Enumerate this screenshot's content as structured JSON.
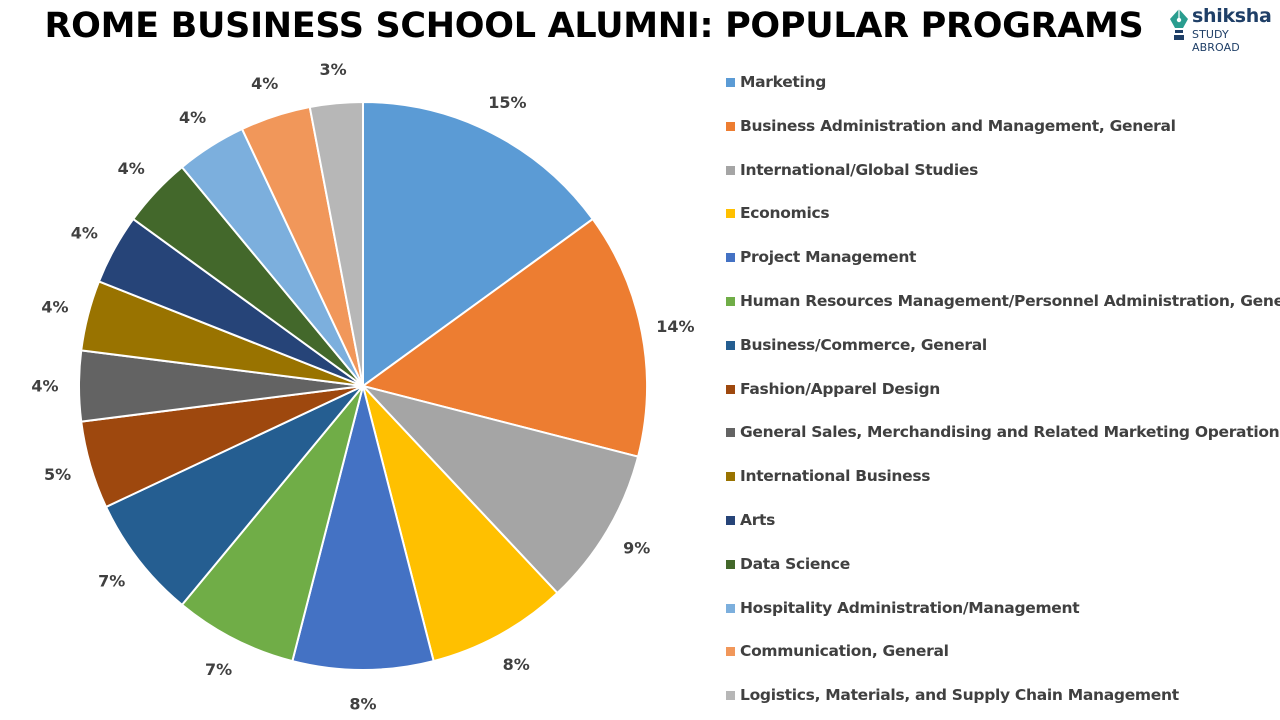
{
  "title": "ROME BUSINESS SCHOOL ALUMNI: POPULAR PROGRAMS",
  "logo": {
    "name": "shiksha",
    "tagline": "STUDY ABROAD",
    "icon": "pen-nib-icon",
    "color": "#1f3f67",
    "accent": "#2a9d8f"
  },
  "chart_data": {
    "type": "pie",
    "title": "ROME BUSINESS SCHOOL ALUMNI: POPULAR PROGRAMS",
    "start_angle": "12 o'clock",
    "direction": "clockwise",
    "legend_position": "right",
    "slices": [
      {
        "label": "Marketing",
        "value": 15,
        "display": "15%",
        "color": "#5b9bd5"
      },
      {
        "label": "Business Administration and Management, General",
        "value": 14,
        "display": "14%",
        "color": "#ed7d31"
      },
      {
        "label": "International/Global Studies",
        "value": 9,
        "display": "9%",
        "color": "#a5a5a5"
      },
      {
        "label": "Economics",
        "value": 8,
        "display": "8%",
        "color": "#ffc000"
      },
      {
        "label": "Project Management",
        "value": 8,
        "display": "8%",
        "color": "#4472c4"
      },
      {
        "label": "Human Resources Management/Personnel Administration, General",
        "value": 7,
        "display": "7%",
        "color": "#70ad47"
      },
      {
        "label": "Business/Commerce, General",
        "value": 7,
        "display": "7%",
        "color": "#255e91"
      },
      {
        "label": "Fashion/Apparel Design",
        "value": 5,
        "display": "5%",
        "color": "#9e480e"
      },
      {
        "label": "General Sales, Merchandising and Related Marketing Operations",
        "value": 4,
        "display": "4%",
        "color": "#636363"
      },
      {
        "label": "International Business",
        "value": 4,
        "display": "4%",
        "color": "#997300"
      },
      {
        "label": "Arts",
        "value": 4,
        "display": "4%",
        "color": "#264478"
      },
      {
        "label": "Data Science",
        "value": 4,
        "display": "4%",
        "color": "#43682b"
      },
      {
        "label": "Hospitality Administration/Management",
        "value": 4,
        "display": "4%",
        "color": "#7cafdd"
      },
      {
        "label": "Communication, General",
        "value": 4,
        "display": "4%",
        "color": "#f1975a"
      },
      {
        "label": "Logistics, Materials, and Supply Chain Management",
        "value": 3,
        "display": "3%",
        "color": "#b7b7b7"
      }
    ]
  }
}
